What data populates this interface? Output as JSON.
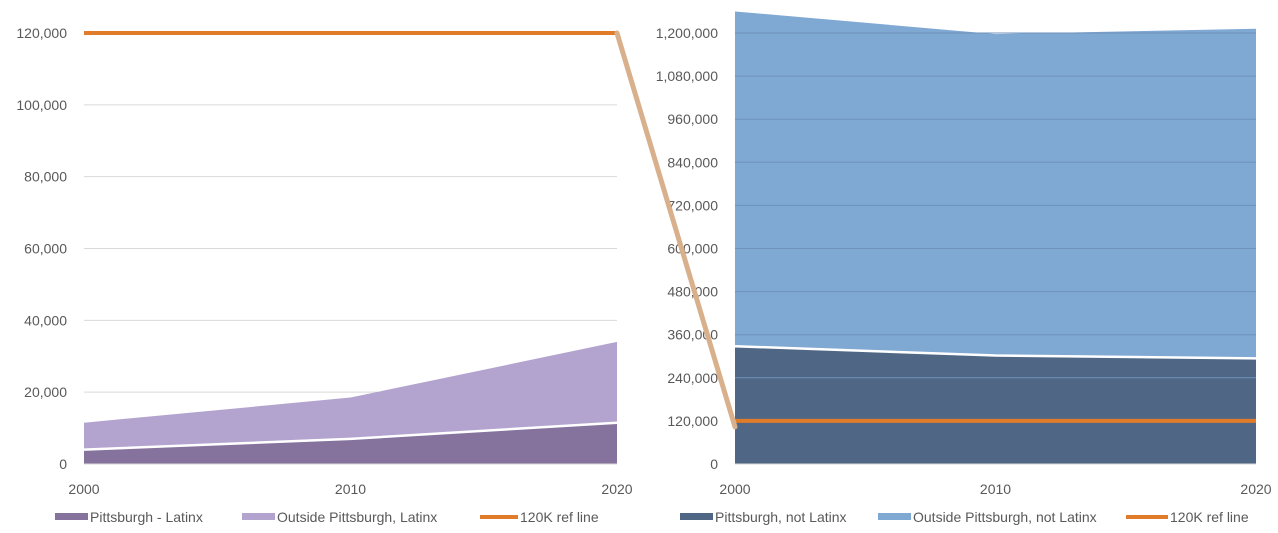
{
  "colors": {
    "left_inside": "#85739e",
    "left_outside": "#b3a3cf",
    "right_inside": "#4f6785",
    "right_outside": "#7fa8d2",
    "ref_line": "#e07b2a",
    "connector": "#d8b08c",
    "gridline": "#d9d9d9",
    "gridline_dark": "#6f92bb",
    "axis_text": "#595959"
  },
  "chart_data": [
    {
      "type": "area",
      "stacked": true,
      "x": [
        "2000",
        "2010",
        "2020"
      ],
      "ylim": [
        0,
        120000
      ],
      "yticks": [
        "0",
        "20,000",
        "40,000",
        "60,000",
        "80,000",
        "100,000",
        "120,000"
      ],
      "series": [
        {
          "name": "Pittsburgh - Latinx",
          "values": [
            4000,
            7000,
            11500
          ]
        },
        {
          "name": "Outside Pittsburgh, Latinx",
          "values": [
            7500,
            11500,
            22500
          ]
        }
      ],
      "ref_line": {
        "name": "120K ref line",
        "value": 120000
      },
      "grid": true,
      "legend": "bottom"
    },
    {
      "type": "area",
      "stacked": true,
      "x": [
        "2000",
        "2010",
        "2020"
      ],
      "ylim": [
        0,
        1200000
      ],
      "yticks": [
        "0",
        "120,000",
        "240,000",
        "360,000",
        "480,000",
        "600,000",
        "720,000",
        "840,000",
        "960,000",
        "1,080,000",
        "1,200,000"
      ],
      "series": [
        {
          "name": "Pittsburgh, not Latinx",
          "values": [
            328000,
            302000,
            294000
          ]
        },
        {
          "name": "Outside Pittsburgh, not Latinx",
          "values": [
            932000,
            895000,
            918000
          ]
        }
      ],
      "ref_line": {
        "name": "120K ref line",
        "value": 120000
      },
      "grid": true,
      "legend": "bottom"
    }
  ]
}
